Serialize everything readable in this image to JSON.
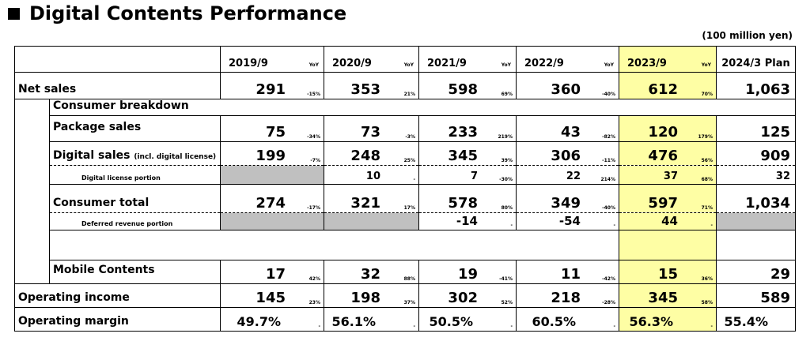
{
  "title": "Digital Contents Performance",
  "unit": "(100 million yen)",
  "columns": [
    {
      "label": "2019/9",
      "yoy": "YoY"
    },
    {
      "label": "2020/9",
      "yoy": "YoY"
    },
    {
      "label": "2021/9",
      "yoy": "YoY"
    },
    {
      "label": "2022/9",
      "yoy": "YoY"
    },
    {
      "label": "2023/9",
      "yoy": "YoY"
    },
    {
      "label": "2024/3 Plan",
      "yoy": ""
    }
  ],
  "rows": {
    "net_sales": {
      "label": "Net sales",
      "values": [
        "291",
        "353",
        "598",
        "360",
        "612",
        "1,063"
      ],
      "yoy": [
        "-15%",
        "21%",
        "69%",
        "-40%",
        "70%",
        ""
      ]
    },
    "consumer_breakdown": {
      "label": "Consumer breakdown"
    },
    "package_sales": {
      "label": "Package sales",
      "values": [
        "75",
        "73",
        "233",
        "43",
        "120",
        "125"
      ],
      "yoy": [
        "-34%",
        "-3%",
        "219%",
        "-82%",
        "179%",
        ""
      ]
    },
    "digital_sales": {
      "label": "Digital sales",
      "note": "(incl. digital license)",
      "values": [
        "199",
        "248",
        "345",
        "306",
        "476",
        "909"
      ],
      "yoy": [
        "-7%",
        "25%",
        "39%",
        "-11%",
        "56%",
        ""
      ]
    },
    "digital_license": {
      "label": "Digital license portion",
      "values": [
        "",
        "10",
        "7",
        "22",
        "37",
        "32"
      ],
      "yoy": [
        "",
        "-",
        "-30%",
        "214%",
        "68%",
        ""
      ]
    },
    "consumer_total": {
      "label": "Consumer total",
      "values": [
        "274",
        "321",
        "578",
        "349",
        "597",
        "1,034"
      ],
      "yoy": [
        "-17%",
        "17%",
        "80%",
        "-40%",
        "71%",
        ""
      ]
    },
    "deferred_revenue": {
      "label": "Deferred revenue portion",
      "values": [
        "",
        "",
        "-14",
        "-54",
        "44",
        ""
      ],
      "yoy": [
        "",
        "",
        "-",
        "-",
        "-",
        ""
      ]
    },
    "mobile_contents": {
      "label": "Mobile Contents",
      "values": [
        "17",
        "32",
        "19",
        "11",
        "15",
        "29"
      ],
      "yoy": [
        "42%",
        "88%",
        "-41%",
        "-42%",
        "36%",
        ""
      ]
    },
    "operating_income": {
      "label": "Operating income",
      "values": [
        "145",
        "198",
        "302",
        "218",
        "345",
        "589"
      ],
      "yoy": [
        "23%",
        "37%",
        "52%",
        "-28%",
        "58%",
        ""
      ]
    },
    "operating_margin": {
      "label": "Operating margin",
      "values": [
        "49.7%",
        "56.1%",
        "50.5%",
        "60.5%",
        "56.3%",
        "55.4%"
      ],
      "yoy": [
        "-",
        "-",
        "-",
        "-",
        "-",
        ""
      ]
    }
  }
}
